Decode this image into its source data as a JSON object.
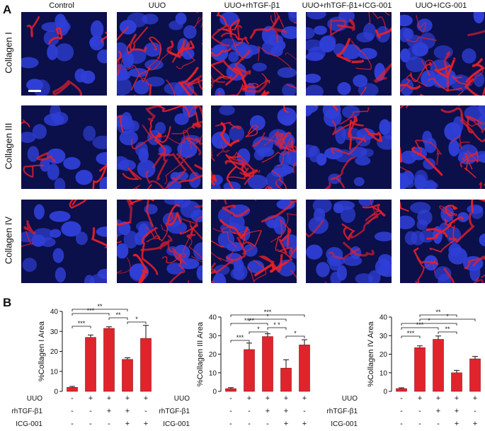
{
  "panel_a": {
    "letter": "A",
    "columns": [
      "Control",
      "UUO",
      "UUO+rhTGF-β1",
      "UUO+rhTGF-β1+ICG-001",
      "UUO+ICG-001"
    ],
    "rows": [
      "Collagen I",
      "Collagen III",
      "Collagen IV"
    ],
    "staining_colors": {
      "nuclei": "#2f3fd6",
      "collagen": "#e8202a",
      "background": "#0b0f4a"
    }
  },
  "panel_b": {
    "letter": "B",
    "row_labels": [
      "UUO",
      "rhTGF-β1",
      "ICG-001"
    ]
  },
  "chart_data": [
    {
      "type": "bar",
      "ylabel": "%Collagen I Area",
      "ylim": [
        0,
        40
      ],
      "yticks": [
        "0",
        "10",
        "20",
        "30",
        "40"
      ],
      "values": [
        2,
        27,
        31.5,
        16,
        26.5
      ],
      "errors": [
        0.5,
        1.2,
        0.8,
        0.8,
        6.5
      ],
      "bar_color": "#e0242c",
      "conditions": {
        "UUO": [
          "-",
          "+",
          "+",
          "+",
          "+"
        ],
        "rhTGF-β1": [
          "-",
          "-",
          "+",
          "+",
          "-"
        ],
        "ICG-001": [
          "-",
          "-",
          "-",
          "+",
          "+"
        ]
      },
      "significance": [
        {
          "from": 0,
          "to": 3,
          "label": "**"
        },
        {
          "from": 0,
          "to": 2,
          "label": "***"
        },
        {
          "from": 2,
          "to": 3,
          "label": "**"
        },
        {
          "from": 3,
          "to": 4,
          "label": "*"
        },
        {
          "from": 0,
          "to": 1,
          "label": "***"
        }
      ]
    },
    {
      "type": "bar",
      "ylabel": "%Collagen III Area",
      "ylim": [
        0,
        40
      ],
      "yticks": [
        "0",
        "10",
        "20",
        "30",
        "40"
      ],
      "values": [
        1.5,
        22.5,
        29.5,
        12.5,
        25
      ],
      "errors": [
        0.5,
        3.5,
        1.5,
        4.5,
        2.8
      ],
      "bar_color": "#e0242c",
      "conditions": {
        "UUO": [
          "-",
          "+",
          "+",
          "+",
          "+"
        ],
        "rhTGF-β1": [
          "-",
          "-",
          "+",
          "+",
          "-"
        ],
        "ICG-001": [
          "-",
          "-",
          "-",
          "+",
          "+"
        ]
      },
      "significance": [
        {
          "from": 0,
          "to": 4,
          "label": "***"
        },
        {
          "from": 1,
          "to": 3,
          "label": "*"
        },
        {
          "from": 0,
          "to": 2,
          "label": "****"
        },
        {
          "from": 2,
          "to": 3,
          "label": "* *"
        },
        {
          "from": 1,
          "to": 2,
          "label": "*"
        },
        {
          "from": 3,
          "to": 4,
          "label": "*"
        },
        {
          "from": 0,
          "to": 1,
          "label": "***"
        }
      ]
    },
    {
      "type": "bar",
      "ylabel": "%Collagen IV Area",
      "ylim": [
        0,
        40
      ],
      "yticks": [
        "0",
        "10",
        "20",
        "30",
        "40"
      ],
      "values": [
        1.5,
        23.5,
        28,
        10,
        17.5
      ],
      "errors": [
        0.4,
        1.0,
        1.8,
        1.3,
        1.3
      ],
      "bar_color": "#e0242c",
      "conditions": {
        "UUO": [
          "-",
          "+",
          "+",
          "+",
          "+"
        ],
        "rhTGF-β1": [
          "-",
          "-",
          "+",
          "+",
          "-"
        ],
        "ICG-001": [
          "-",
          "-",
          "-",
          "+",
          "+"
        ]
      },
      "significance": [
        {
          "from": 1,
          "to": 3,
          "label": "**"
        },
        {
          "from": 1,
          "to": 4,
          "label": "*"
        },
        {
          "from": 0,
          "to": 3,
          "label": "*"
        },
        {
          "from": 0,
          "to": 2,
          "label": "***"
        },
        {
          "from": 2,
          "to": 3,
          "label": "**"
        },
        {
          "from": 0,
          "to": 1,
          "label": "***"
        }
      ]
    }
  ]
}
